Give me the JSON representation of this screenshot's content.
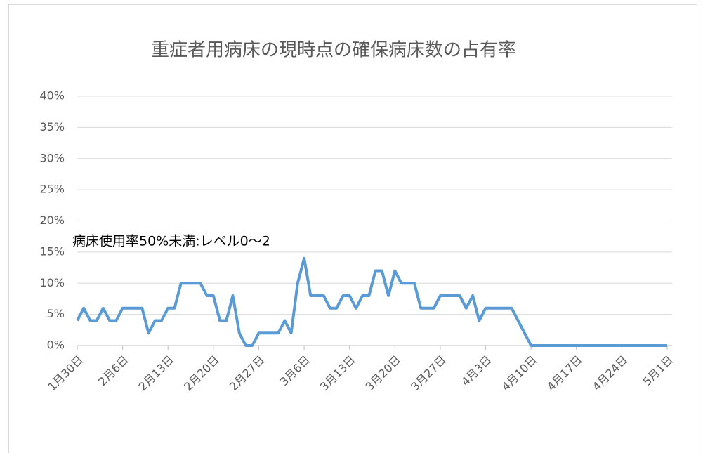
{
  "chart_data": {
    "type": "line",
    "title": "重症者用病床の現時点の確保病床数の占有率",
    "annotation": "病床使用率50%未満:レベル0～2",
    "categories": [
      "1月30日",
      null,
      null,
      null,
      null,
      null,
      null,
      "2月6日",
      null,
      null,
      null,
      null,
      null,
      null,
      "2月13日",
      null,
      null,
      null,
      null,
      null,
      null,
      "2月20日",
      null,
      null,
      null,
      null,
      null,
      null,
      "2月27日",
      null,
      null,
      null,
      null,
      null,
      null,
      "3月6日",
      null,
      null,
      null,
      null,
      null,
      null,
      "3月13日",
      null,
      null,
      null,
      null,
      null,
      null,
      "3月20日",
      null,
      null,
      null,
      null,
      null,
      null,
      "3月27日",
      null,
      null,
      null,
      null,
      null,
      null,
      "4月3日",
      null,
      null,
      null,
      null,
      null,
      null,
      "4月10日",
      null,
      null,
      null,
      null,
      null,
      null,
      "4月17日",
      null,
      null,
      null,
      null,
      null,
      null,
      "4月24日",
      null,
      null,
      null,
      null,
      null,
      null,
      "5月1日"
    ],
    "series": [
      {
        "color": "#5b9bd5",
        "values": [
          4,
          6,
          4,
          4,
          6,
          4,
          4,
          6,
          6,
          6,
          6,
          2,
          4,
          4,
          6,
          6,
          10,
          10,
          10,
          10,
          8,
          8,
          4,
          4,
          8,
          2,
          0,
          0,
          2,
          2,
          2,
          2,
          4,
          2,
          10,
          14,
          8,
          8,
          8,
          6,
          6,
          8,
          8,
          6,
          8,
          8,
          12,
          12,
          8,
          12,
          10,
          10,
          10,
          6,
          6,
          6,
          8,
          8,
          8,
          8,
          6,
          8,
          4,
          6,
          6,
          6,
          6,
          6,
          4,
          2,
          0,
          0,
          0,
          0,
          0,
          0,
          0,
          0,
          0,
          0,
          0,
          0,
          0,
          0,
          0,
          0,
          0,
          0,
          0,
          0,
          0,
          0
        ]
      }
    ],
    "ylim": [
      0,
      40
    ],
    "yticks": [
      {
        "value": 0,
        "label": "0%"
      },
      {
        "value": 5,
        "label": "5%"
      },
      {
        "value": 10,
        "label": "10%"
      },
      {
        "value": 15,
        "label": "15%"
      },
      {
        "value": 20,
        "label": "20%"
      },
      {
        "value": 25,
        "label": "25%"
      },
      {
        "value": 30,
        "label": "30%"
      },
      {
        "value": 35,
        "label": "35%"
      },
      {
        "value": 40,
        "label": "40%"
      }
    ],
    "grid": true
  }
}
